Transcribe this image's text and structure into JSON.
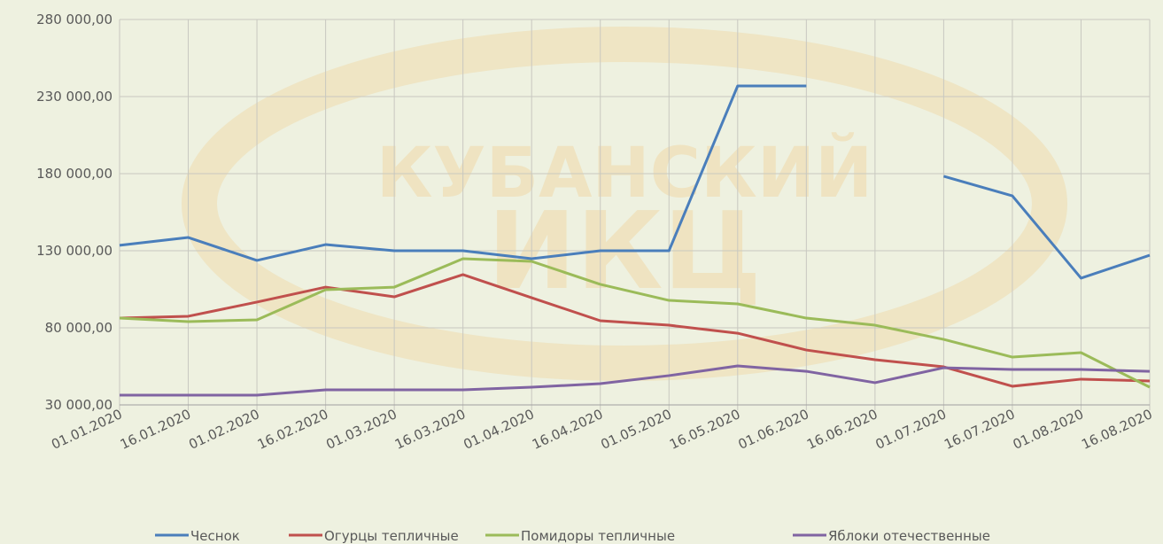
{
  "watermark": [
    "КУБАНСКИЙ",
    "ИКЦ"
  ],
  "chart_data": {
    "type": "line",
    "categories": [
      "01.01.2020",
      "16.01.2020",
      "01.02.2020",
      "16.02.2020",
      "01.03.2020",
      "16.03.2020",
      "01.04.2020",
      "16.04.2020",
      "01.05.2020",
      "16.05.2020",
      "01.06.2020",
      "16.06.2020",
      "01.07.2020",
      "16.07.2020",
      "01.08.2020",
      "16.08.2020"
    ],
    "series": [
      {
        "name": "Чеснок",
        "color": "#4a7ebb",
        "values": [
          133500,
          138600,
          123700,
          134000,
          130000,
          130000,
          124800,
          130000,
          130000,
          236900,
          236900,
          null,
          178300,
          165600,
          112200,
          127100
        ]
      },
      {
        "name": "Огурцы тепличные",
        "color": "#c0504d",
        "values": [
          86300,
          87500,
          96700,
          106400,
          100100,
          114500,
          99500,
          84600,
          81700,
          76500,
          65600,
          59300,
          54700,
          42100,
          46700,
          45500
        ]
      },
      {
        "name": "Помидоры тепличные",
        "color": "#9bbb59",
        "values": [
          86300,
          84000,
          85200,
          104700,
          106400,
          124800,
          123100,
          108200,
          97800,
          95500,
          86300,
          81700,
          72500,
          61000,
          63900,
          41500
        ]
      },
      {
        "name": "Яблоки отечественные",
        "color": "#8064a2",
        "values": [
          36300,
          36300,
          36300,
          39800,
          39800,
          39800,
          41500,
          43800,
          49000,
          55300,
          51800,
          44400,
          54100,
          53000,
          53000,
          51800
        ]
      }
    ],
    "ylim": [
      30000,
      280000
    ],
    "yticks": [
      {
        "value": 30000,
        "label": "30 000,00"
      },
      {
        "value": 80000,
        "label": "80 000,00"
      },
      {
        "value": 130000,
        "label": "130 000,00"
      },
      {
        "value": 180000,
        "label": "180 000,00"
      },
      {
        "value": 230000,
        "label": "230 000,00"
      },
      {
        "value": 280000,
        "label": "280 000,00"
      }
    ],
    "grid": true,
    "legend": "bottom"
  }
}
